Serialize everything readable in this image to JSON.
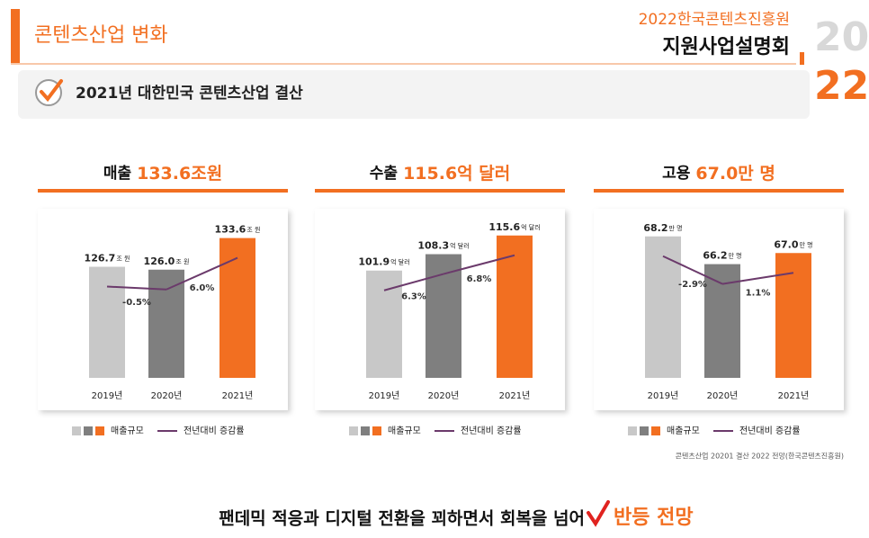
{
  "header": {
    "section": "콘텐츠산업 변화",
    "org": "2022한국콘텐츠진흥원",
    "event": "지원사업설명회",
    "year_top": "20",
    "year_bottom": "22"
  },
  "subtitle": "2021년 대한민국 콘텐츠산업 결산",
  "chart_data": [
    {
      "type": "bar",
      "title_label": "매출",
      "title_value": "133.6조원",
      "categories": [
        "2019년",
        "2020년",
        "2021년"
      ],
      "unit": "조 원",
      "ylim": [
        100,
        140
      ],
      "series": [
        {
          "name": "매출규모",
          "colors": [
            "#c8c8c8",
            "#7f7f7f",
            "#f26f21"
          ],
          "values": [
            126.7,
            126.0,
            133.6
          ],
          "value_labels": [
            "126.7",
            "126.0",
            "133.6"
          ]
        },
        {
          "name": "전년대비 증감률",
          "color": "#6b3a6b",
          "values": [
            null,
            -0.5,
            6.0
          ],
          "value_labels": [
            null,
            "-0.5%",
            "6.0%"
          ]
        }
      ]
    },
    {
      "type": "bar",
      "title_label": "수출",
      "title_value": "115.6억 달러",
      "categories": [
        "2019년",
        "2020년",
        "2021년"
      ],
      "unit": "억 달러",
      "ylim": [
        60,
        125
      ],
      "series": [
        {
          "name": "매출규모",
          "colors": [
            "#c8c8c8",
            "#7f7f7f",
            "#f26f21"
          ],
          "values": [
            101.9,
            108.3,
            115.6
          ],
          "value_labels": [
            "101.9",
            "108.3",
            "115.6"
          ]
        },
        {
          "name": "전년대비 증감률",
          "color": "#6b3a6b",
          "values": [
            null,
            6.3,
            6.8
          ],
          "value_labels": [
            null,
            "6.3%",
            "6.8%"
          ]
        }
      ]
    },
    {
      "type": "bar",
      "title_label": "고용",
      "title_value": "67.0만 명",
      "categories": [
        "2019년",
        "2020년",
        "2021년"
      ],
      "unit": "만 명",
      "ylim": [
        58,
        70
      ],
      "series": [
        {
          "name": "매출규모",
          "colors": [
            "#c8c8c8",
            "#7f7f7f",
            "#f26f21"
          ],
          "values": [
            68.2,
            66.2,
            67.0
          ],
          "value_labels": [
            "68.2",
            "66.2",
            "67.0"
          ]
        },
        {
          "name": "전년대비 증감률",
          "color": "#6b3a6b",
          "values": [
            null,
            -2.9,
            1.1
          ],
          "value_labels": [
            null,
            "-2.9%",
            "1.1%"
          ]
        }
      ]
    }
  ],
  "source": "콘텐츠산업 20201 결산 2022 전망(한국콘텐츠진흥원)",
  "footer": {
    "text": "팬데믹 적응과 디지털 전환을 꾀하면서 회복을 넘어",
    "highlight": "반등 전망"
  }
}
